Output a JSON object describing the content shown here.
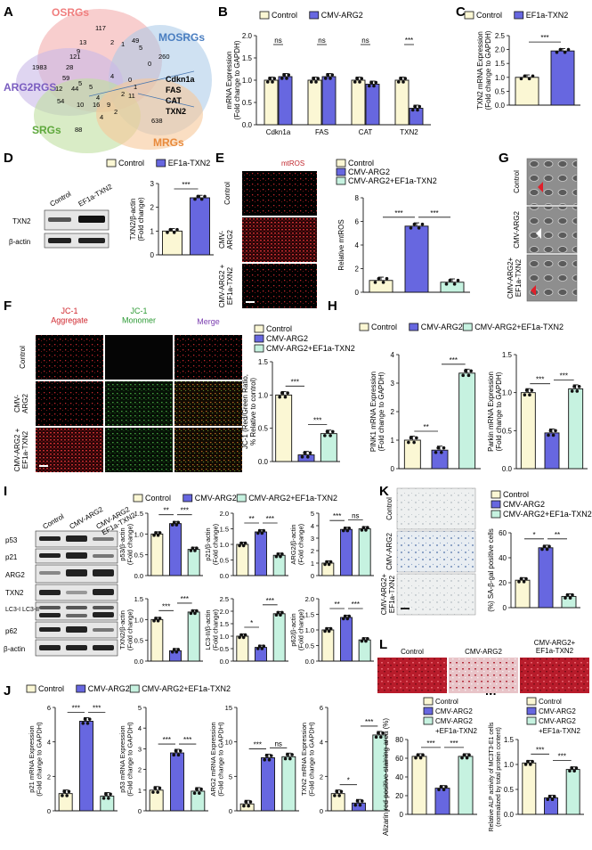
{
  "colors": {
    "control": "#fbf7d4",
    "arg2": "#6767e0",
    "txn2": "#c6f2e0",
    "edge": "#111111"
  },
  "legend": {
    "control": "Control",
    "cmv_arg2": "CMV-ARG2",
    "ef1a_txn2": "EF1a-TXN2",
    "cmv_arg2_ef1a_txn2": "CMV-ARG2+EF1a-TXN2",
    "ef1a_txn2_split": "+EF1a-TXN2"
  },
  "panel_letters": [
    "A",
    "B",
    "C",
    "D",
    "E",
    "F",
    "G",
    "H",
    "I",
    "J",
    "K",
    "L",
    "M"
  ],
  "venn": {
    "sets": [
      "OSRGs",
      "MOSRGs",
      "ARG2RGS",
      "SRGs",
      "MRGs"
    ],
    "numbers": [
      "117",
      "13",
      "2",
      "49",
      "1",
      "5",
      "260",
      "9",
      "0",
      "1983",
      "121",
      "28",
      "59",
      "4",
      "5",
      "12",
      "44",
      "5",
      "0",
      "1",
      "11",
      "4",
      "2",
      "54",
      "10",
      "16",
      "9",
      "2",
      "4",
      "88",
      "638"
    ],
    "genes": [
      "Cdkn1a",
      "FAS",
      "CAT",
      "TXN2"
    ]
  },
  "sig": {
    "three": "***",
    "two": "**",
    "one": "*",
    "ns": "ns"
  },
  "chart_data": [
    {
      "panel": "B",
      "type": "bar",
      "categories": [
        "Cdkn1a",
        "FAS",
        "CAT",
        "TXN2"
      ],
      "series": [
        {
          "name": "Control",
          "values": [
            1.0,
            1.0,
            1.0,
            1.0
          ]
        },
        {
          "name": "CMV-ARG2",
          "values": [
            1.08,
            1.08,
            0.91,
            0.37
          ]
        }
      ],
      "ylabel": "mRNA Expression\n(Fold change to GAPDH)",
      "yticks": [
        "0.0",
        "0.5",
        "1.0",
        "1.5",
        "2.0"
      ],
      "ylim": [
        0,
        2.0
      ],
      "annotations": [
        "ns",
        "ns",
        "ns",
        "***"
      ]
    },
    {
      "panel": "C",
      "type": "bar",
      "categories": [
        "Control",
        "EF1a-TXN2"
      ],
      "values": [
        1.0,
        1.95
      ],
      "ylabel": "TXN2 mRNA Expression\n(Fold change to GAPDH)",
      "yticks": [
        "0.0",
        "0.5",
        "1.0",
        "1.5",
        "2.0",
        "2.5"
      ],
      "ylim": [
        0,
        2.5
      ],
      "annotations": [
        "***"
      ]
    },
    {
      "panel": "D",
      "type": "bar",
      "categories": [
        "Control",
        "EF1a-TXN2"
      ],
      "values": [
        1.0,
        2.4
      ],
      "ylabel": "TXN2/β-actin\n(Fold change)",
      "yticks": [
        "0",
        "1",
        "2",
        "3"
      ],
      "ylim": [
        0,
        3
      ],
      "annotations": [
        "***"
      ],
      "blot": {
        "columns": [
          "Control",
          "EF1a-TXN2"
        ],
        "rows": [
          "TXN2",
          "β-actin"
        ]
      }
    },
    {
      "panel": "E",
      "type": "bar",
      "categories": [
        "Control",
        "CMV-ARG2",
        "CMV-ARG2+EF1a-TXN2"
      ],
      "values": [
        1.0,
        5.6,
        0.85
      ],
      "ylabel": "Relative mtROS",
      "yticks": [
        "0",
        "2",
        "4",
        "6",
        "8"
      ],
      "ylim": [
        0,
        8
      ],
      "annotations": [
        "***",
        "***"
      ],
      "image_title": "mtROS",
      "image_rows": [
        "Control",
        "CMV-\nARG2",
        "CMV-ARG2 +\nEF1a-TXN2"
      ]
    },
    {
      "panel": "F",
      "type": "bar",
      "categories": [
        "Control",
        "CMV-ARG2",
        "CMV-ARG2+EF1a-TXN2"
      ],
      "values": [
        1.0,
        0.1,
        0.42
      ],
      "ylabel": "JC-1 (Red/Green Ratio,\n% Relative to control)",
      "yticks": [
        "0.0",
        "0.5",
        "1.0",
        "1.5"
      ],
      "ylim": [
        0,
        1.5
      ],
      "annotations": [
        "***",
        "***"
      ],
      "image_columns": [
        "JC-1\nAggregate",
        "JC-1\nMonomer",
        "Merge"
      ],
      "image_rows": [
        "Control",
        "CMV-\nARG2",
        "CMV-ARG2 +\nEF1a-TXN2"
      ]
    },
    {
      "panel": "G",
      "type": "image",
      "image_rows": [
        "Control",
        "CMV-ARG2",
        "CMV-ARG2+\nEF1a-TXN2"
      ]
    },
    {
      "panel": "H",
      "type": "bar",
      "charts": [
        {
          "categories": [
            "Control",
            "CMV-ARG2",
            "CMV-ARG2+EF1a-TXN2"
          ],
          "values": [
            1.0,
            0.65,
            3.35
          ],
          "ylabel": "PINK1 mRNA Expression\n(Fold change to GAPDH)",
          "yticks": [
            "0",
            "1",
            "2",
            "3",
            "4"
          ],
          "ylim": [
            0,
            4
          ],
          "annotations": [
            "**",
            "***"
          ]
        },
        {
          "categories": [
            "Control",
            "CMV-ARG2",
            "CMV-ARG2+EF1a-TXN2"
          ],
          "values": [
            1.0,
            0.47,
            1.05
          ],
          "ylabel": "Parkin mRNA Expression\n(Fold change to GAPDH)",
          "yticks": [
            "0.0",
            "0.5",
            "1.0",
            "1.5"
          ],
          "ylim": [
            0,
            1.5
          ],
          "annotations": [
            "***",
            "***"
          ]
        }
      ]
    },
    {
      "panel": "I",
      "type": "bar",
      "blot": {
        "columns": [
          "Control",
          "CMV-ARG2",
          "CMV-ARG2+\nEF1a-TXN2"
        ],
        "rows": [
          "p53",
          "p21",
          "ARG2",
          "TXN2",
          "LC3-I\nLC3-II",
          "p62",
          "β-actin"
        ]
      },
      "charts": [
        {
          "values": [
            1.0,
            1.25,
            0.63
          ],
          "ylabel": "p53/β-actin\n(Fold change)",
          "yticks": [
            "0.0",
            "0.5",
            "1.0",
            "1.5"
          ],
          "ylim": [
            0,
            1.5
          ],
          "annotations": [
            "**",
            "***"
          ]
        },
        {
          "values": [
            1.0,
            1.4,
            0.65
          ],
          "ylabel": "p21/β-actin\n(Fold change)",
          "yticks": [
            "0.0",
            "0.5",
            "1.0",
            "1.5",
            "2.0"
          ],
          "ylim": [
            0,
            2.0
          ],
          "annotations": [
            "**",
            "***"
          ]
        },
        {
          "values": [
            1.0,
            3.7,
            3.75
          ],
          "ylabel": "ARG2/β-actin\n(Fold change)",
          "yticks": [
            "0",
            "1",
            "2",
            "3",
            "4",
            "5"
          ],
          "ylim": [
            0,
            5
          ],
          "annotations": [
            "***",
            "ns"
          ]
        },
        {
          "values": [
            1.0,
            0.25,
            1.18
          ],
          "ylabel": "TXN2/β-actin\n(Fold change)",
          "yticks": [
            "0.0",
            "0.5",
            "1.0",
            "1.5"
          ],
          "ylim": [
            0,
            1.5
          ],
          "annotations": [
            "***",
            "***"
          ]
        },
        {
          "values": [
            1.0,
            0.55,
            1.9
          ],
          "ylabel": "LC3-II/β-actin\n(Fold change)",
          "yticks": [
            "0.0",
            "0.5",
            "1.0",
            "1.5",
            "2.0",
            "2.5"
          ],
          "ylim": [
            0,
            2.5
          ],
          "annotations": [
            "*",
            "***"
          ]
        },
        {
          "values": [
            1.0,
            1.4,
            0.68
          ],
          "ylabel": "p62/β-actin\n(Fold change)",
          "yticks": [
            "0.0",
            "0.5",
            "1.0",
            "1.5",
            "2.0"
          ],
          "ylim": [
            0,
            2.0
          ],
          "annotations": [
            "**",
            "***"
          ]
        }
      ]
    },
    {
      "panel": "J",
      "type": "bar",
      "charts": [
        {
          "values": [
            1.0,
            5.2,
            0.85
          ],
          "ylabel": "p21 mRNA Expression\n(Fold change to GAPDH)",
          "yticks": [
            "0",
            "2",
            "4",
            "6"
          ],
          "ylim": [
            0,
            6
          ],
          "annotations": [
            "***",
            "***"
          ]
        },
        {
          "values": [
            1.0,
            2.8,
            0.95
          ],
          "ylabel": "p53 mRNA Expression\n(Fold change to GAPDH)",
          "yticks": [
            "0",
            "1",
            "2",
            "3",
            "4",
            "5"
          ],
          "ylim": [
            0,
            5
          ],
          "annotations": [
            "***",
            "***"
          ]
        },
        {
          "values": [
            1.0,
            7.7,
            7.85
          ],
          "ylabel": "ARG2 mRNA Expression\n(Fold change to GAPDH)",
          "yticks": [
            "0",
            "5",
            "10",
            "15"
          ],
          "ylim": [
            0,
            15
          ],
          "annotations": [
            "***",
            "ns"
          ]
        },
        {
          "values": [
            1.0,
            0.45,
            4.4
          ],
          "ylabel": "TXN2 mRNA Expression\n(Fold change to GAPDH)",
          "yticks": [
            "0",
            "2",
            "4",
            "6"
          ],
          "ylim": [
            0,
            6
          ],
          "annotations": [
            "*",
            "***"
          ]
        }
      ]
    },
    {
      "panel": "K",
      "type": "bar",
      "categories": [
        "Control",
        "CMV-ARG2",
        "CMV-ARG2+EF1a-TXN2"
      ],
      "values": [
        22,
        48,
        9
      ],
      "ylabel": "(%) SA-β-gal positive cells",
      "yticks": [
        "0",
        "20",
        "40",
        "60"
      ],
      "ylim": [
        0,
        60
      ],
      "annotations": [
        "*",
        "**"
      ],
      "image_rows": [
        "Control",
        "CMV-ARG2",
        "CMV-ARG2+\nEF1a-TXN2"
      ]
    },
    {
      "panel": "L",
      "type": "bar",
      "categories": [
        "Control",
        "CMV-ARG2",
        "CMV-ARG2+EF1a-TXN2"
      ],
      "values": [
        62,
        28,
        62
      ],
      "ylabel": "Alizarin red positive staining area (%)",
      "yticks": [
        "0",
        "20",
        "40",
        "60",
        "80"
      ],
      "ylim": [
        0,
        80
      ],
      "annotations": [
        "***",
        "***"
      ],
      "image_columns": [
        "Control",
        "CMV-ARG2",
        "CMV-ARG2+\nEF1a-TXN2"
      ]
    },
    {
      "panel": "M",
      "type": "bar",
      "categories": [
        "Control",
        "CMV-ARG2",
        "CMV-ARG2+EF1a-TXN2"
      ],
      "values": [
        1.03,
        0.33,
        0.9
      ],
      "ylabel": "Relative ALP activity of MC3T3-E1 cells\n(normalized by total protein content)",
      "yticks": [
        "0.0",
        "0.5",
        "1.0",
        "1.5"
      ],
      "ylim": [
        0,
        1.5
      ],
      "annotations": [
        "***",
        "***"
      ]
    }
  ]
}
